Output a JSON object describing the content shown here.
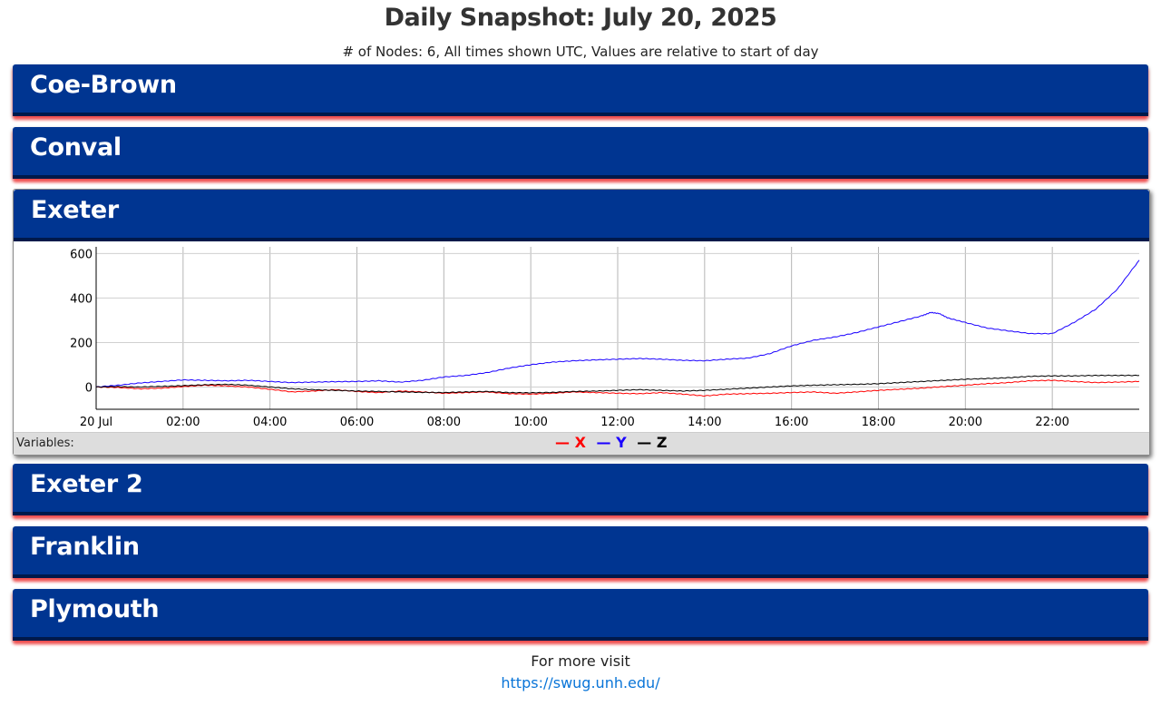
{
  "page": {
    "title": "Daily Snapshot: July 20, 2025",
    "subtitle": "# of Nodes: 6, All times shown UTC, Values are relative to start of day"
  },
  "nodes": [
    {
      "name": "Coe-Brown",
      "expanded": false
    },
    {
      "name": "Conval",
      "expanded": false
    },
    {
      "name": "Exeter",
      "expanded": true
    },
    {
      "name": "Exeter 2",
      "expanded": false
    },
    {
      "name": "Franklin",
      "expanded": false
    },
    {
      "name": "Plymouth",
      "expanded": false
    }
  ],
  "colors": {
    "header_bg": "#003591",
    "header_border": "#00194a",
    "shadow_accent": "#ff2828",
    "link": "#0a75d8"
  },
  "legend": {
    "label": "Variables:",
    "items": [
      {
        "name": "X",
        "color": "#ff0000",
        "symbol": "—"
      },
      {
        "name": "Y",
        "color": "#1a00ff",
        "symbol": "—"
      },
      {
        "name": "Z",
        "color": "#000000",
        "symbol": "—"
      }
    ]
  },
  "chart_data": {
    "type": "line",
    "node": "Exeter",
    "x_unit": "hours UTC",
    "xlim": [
      0,
      24
    ],
    "ylim": [
      -100,
      630
    ],
    "x_ticks": [
      {
        "value": 0,
        "label": "20 Jul"
      },
      {
        "value": 2,
        "label": "02:00"
      },
      {
        "value": 4,
        "label": "04:00"
      },
      {
        "value": 6,
        "label": "06:00"
      },
      {
        "value": 8,
        "label": "08:00"
      },
      {
        "value": 10,
        "label": "10:00"
      },
      {
        "value": 12,
        "label": "12:00"
      },
      {
        "value": 14,
        "label": "14:00"
      },
      {
        "value": 16,
        "label": "16:00"
      },
      {
        "value": 18,
        "label": "18:00"
      },
      {
        "value": 20,
        "label": "20:00"
      },
      {
        "value": 22,
        "label": "22:00"
      }
    ],
    "y_ticks": [
      {
        "value": 0,
        "label": "0"
      },
      {
        "value": 200,
        "label": "200"
      },
      {
        "value": 400,
        "label": "400"
      },
      {
        "value": 600,
        "label": "600"
      }
    ],
    "grid": true,
    "legend_position": "bottom",
    "series": [
      {
        "name": "X",
        "color": "#ff0000",
        "x": [
          0,
          0.5,
          1,
          1.5,
          2,
          2.5,
          3,
          3.5,
          4,
          4.5,
          5,
          5.5,
          6,
          6.5,
          7,
          7.5,
          8,
          8.5,
          9,
          9.5,
          10,
          10.5,
          11,
          11.5,
          12,
          12.5,
          13,
          13.5,
          14,
          14.5,
          15,
          15.5,
          16,
          16.5,
          17,
          17.5,
          18,
          18.5,
          19,
          19.5,
          20,
          20.5,
          21,
          21.5,
          22,
          22.5,
          23,
          23.5,
          24
        ],
        "y": [
          0,
          -2,
          -8,
          -5,
          2,
          8,
          5,
          0,
          -10,
          -22,
          -18,
          -12,
          -20,
          -25,
          -18,
          -22,
          -28,
          -25,
          -22,
          -30,
          -32,
          -28,
          -22,
          -25,
          -28,
          -30,
          -25,
          -32,
          -40,
          -32,
          -30,
          -28,
          -25,
          -22,
          -28,
          -22,
          -15,
          -10,
          -5,
          2,
          8,
          15,
          20,
          28,
          30,
          25,
          20,
          22,
          25
        ]
      },
      {
        "name": "Y",
        "color": "#1a00ff",
        "x": [
          0,
          0.5,
          1,
          1.5,
          2,
          2.5,
          3,
          3.5,
          4,
          4.5,
          5,
          5.5,
          6,
          6.5,
          7,
          7.5,
          8,
          8.5,
          9,
          9.5,
          10,
          10.5,
          11,
          11.5,
          12,
          12.5,
          13,
          13.5,
          14,
          14.5,
          15,
          15.5,
          16,
          16.5,
          17,
          17.5,
          18,
          18.5,
          19,
          19.2,
          19.4,
          19.6,
          20,
          20.5,
          21,
          21.5,
          22,
          22.5,
          23,
          23.5,
          24
        ],
        "y": [
          0,
          8,
          18,
          25,
          32,
          30,
          28,
          30,
          25,
          20,
          22,
          24,
          25,
          28,
          22,
          30,
          45,
          52,
          65,
          85,
          100,
          112,
          118,
          122,
          125,
          128,
          125,
          120,
          118,
          125,
          130,
          150,
          185,
          210,
          225,
          245,
          270,
          295,
          320,
          335,
          330,
          310,
          290,
          265,
          252,
          240,
          240,
          290,
          350,
          440,
          570
        ]
      },
      {
        "name": "Z",
        "color": "#000000",
        "x": [
          0,
          0.5,
          1,
          1.5,
          2,
          2.5,
          3,
          3.5,
          4,
          4.5,
          5,
          5.5,
          6,
          6.5,
          7,
          7.5,
          8,
          8.5,
          9,
          9.5,
          10,
          10.5,
          11,
          11.5,
          12,
          12.5,
          13,
          13.5,
          14,
          14.5,
          15,
          15.5,
          16,
          16.5,
          17,
          17.5,
          18,
          18.5,
          19,
          19.5,
          20,
          20.5,
          21,
          21.5,
          22,
          22.5,
          23,
          23.5,
          24
        ],
        "y": [
          0,
          2,
          0,
          3,
          6,
          10,
          12,
          8,
          0,
          -8,
          -12,
          -15,
          -18,
          -20,
          -22,
          -24,
          -25,
          -22,
          -20,
          -25,
          -26,
          -24,
          -20,
          -18,
          -15,
          -12,
          -15,
          -18,
          -15,
          -10,
          -5,
          0,
          5,
          8,
          10,
          12,
          15,
          20,
          25,
          30,
          35,
          38,
          42,
          48,
          50,
          50,
          52,
          52,
          52
        ]
      }
    ]
  },
  "footer": {
    "text": "For more visit",
    "link_text": "https://swug.unh.edu/"
  }
}
